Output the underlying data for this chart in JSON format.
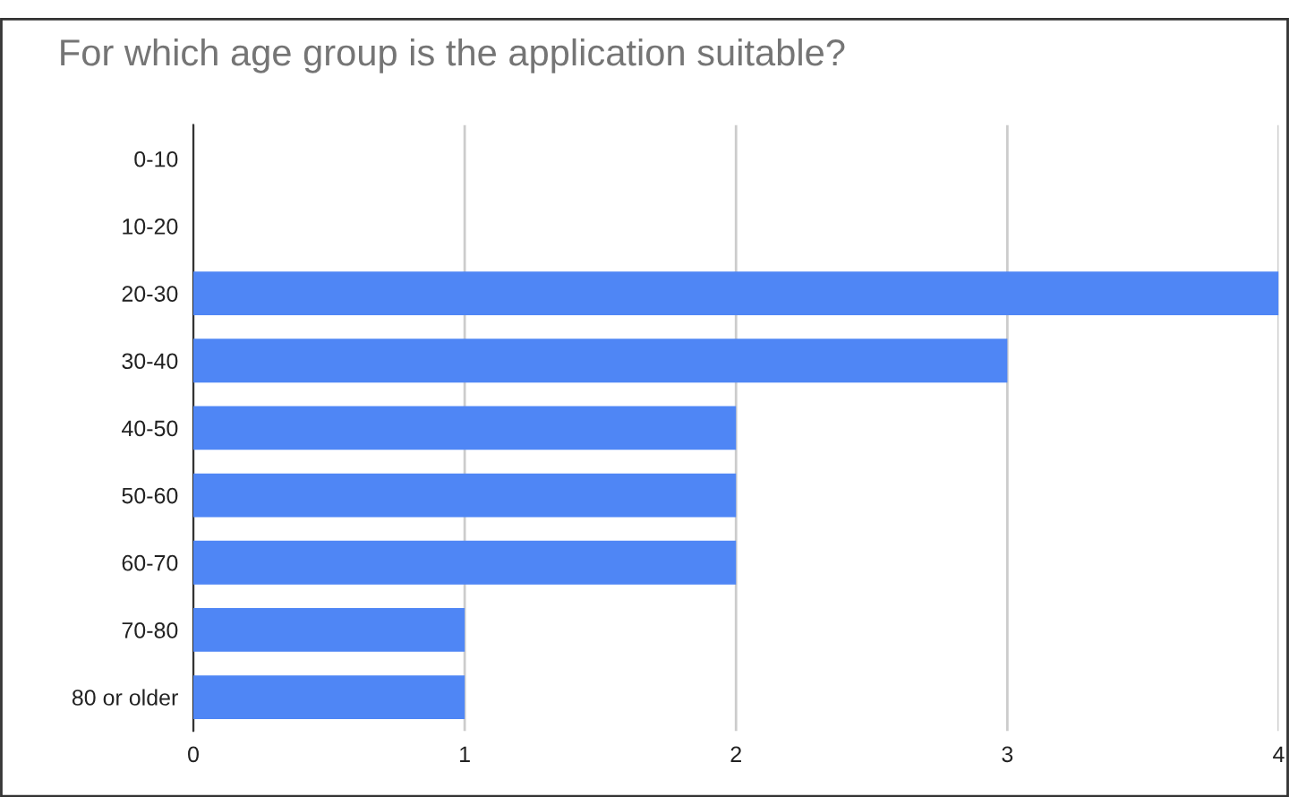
{
  "chart_data": {
    "type": "bar",
    "orientation": "horizontal",
    "title": "For which age group is the application suitable?",
    "categories": [
      "0-10",
      "10-20",
      "20-30",
      "30-40",
      "40-50",
      "50-60",
      "60-70",
      "70-80",
      "80 or older"
    ],
    "values": [
      0,
      0,
      4,
      3,
      2,
      2,
      2,
      1,
      1
    ],
    "color": "#4f86f5",
    "xlim": [
      0,
      4
    ],
    "xticks": [
      0,
      1,
      2,
      3,
      4
    ],
    "grid": "x",
    "legend": false
  }
}
